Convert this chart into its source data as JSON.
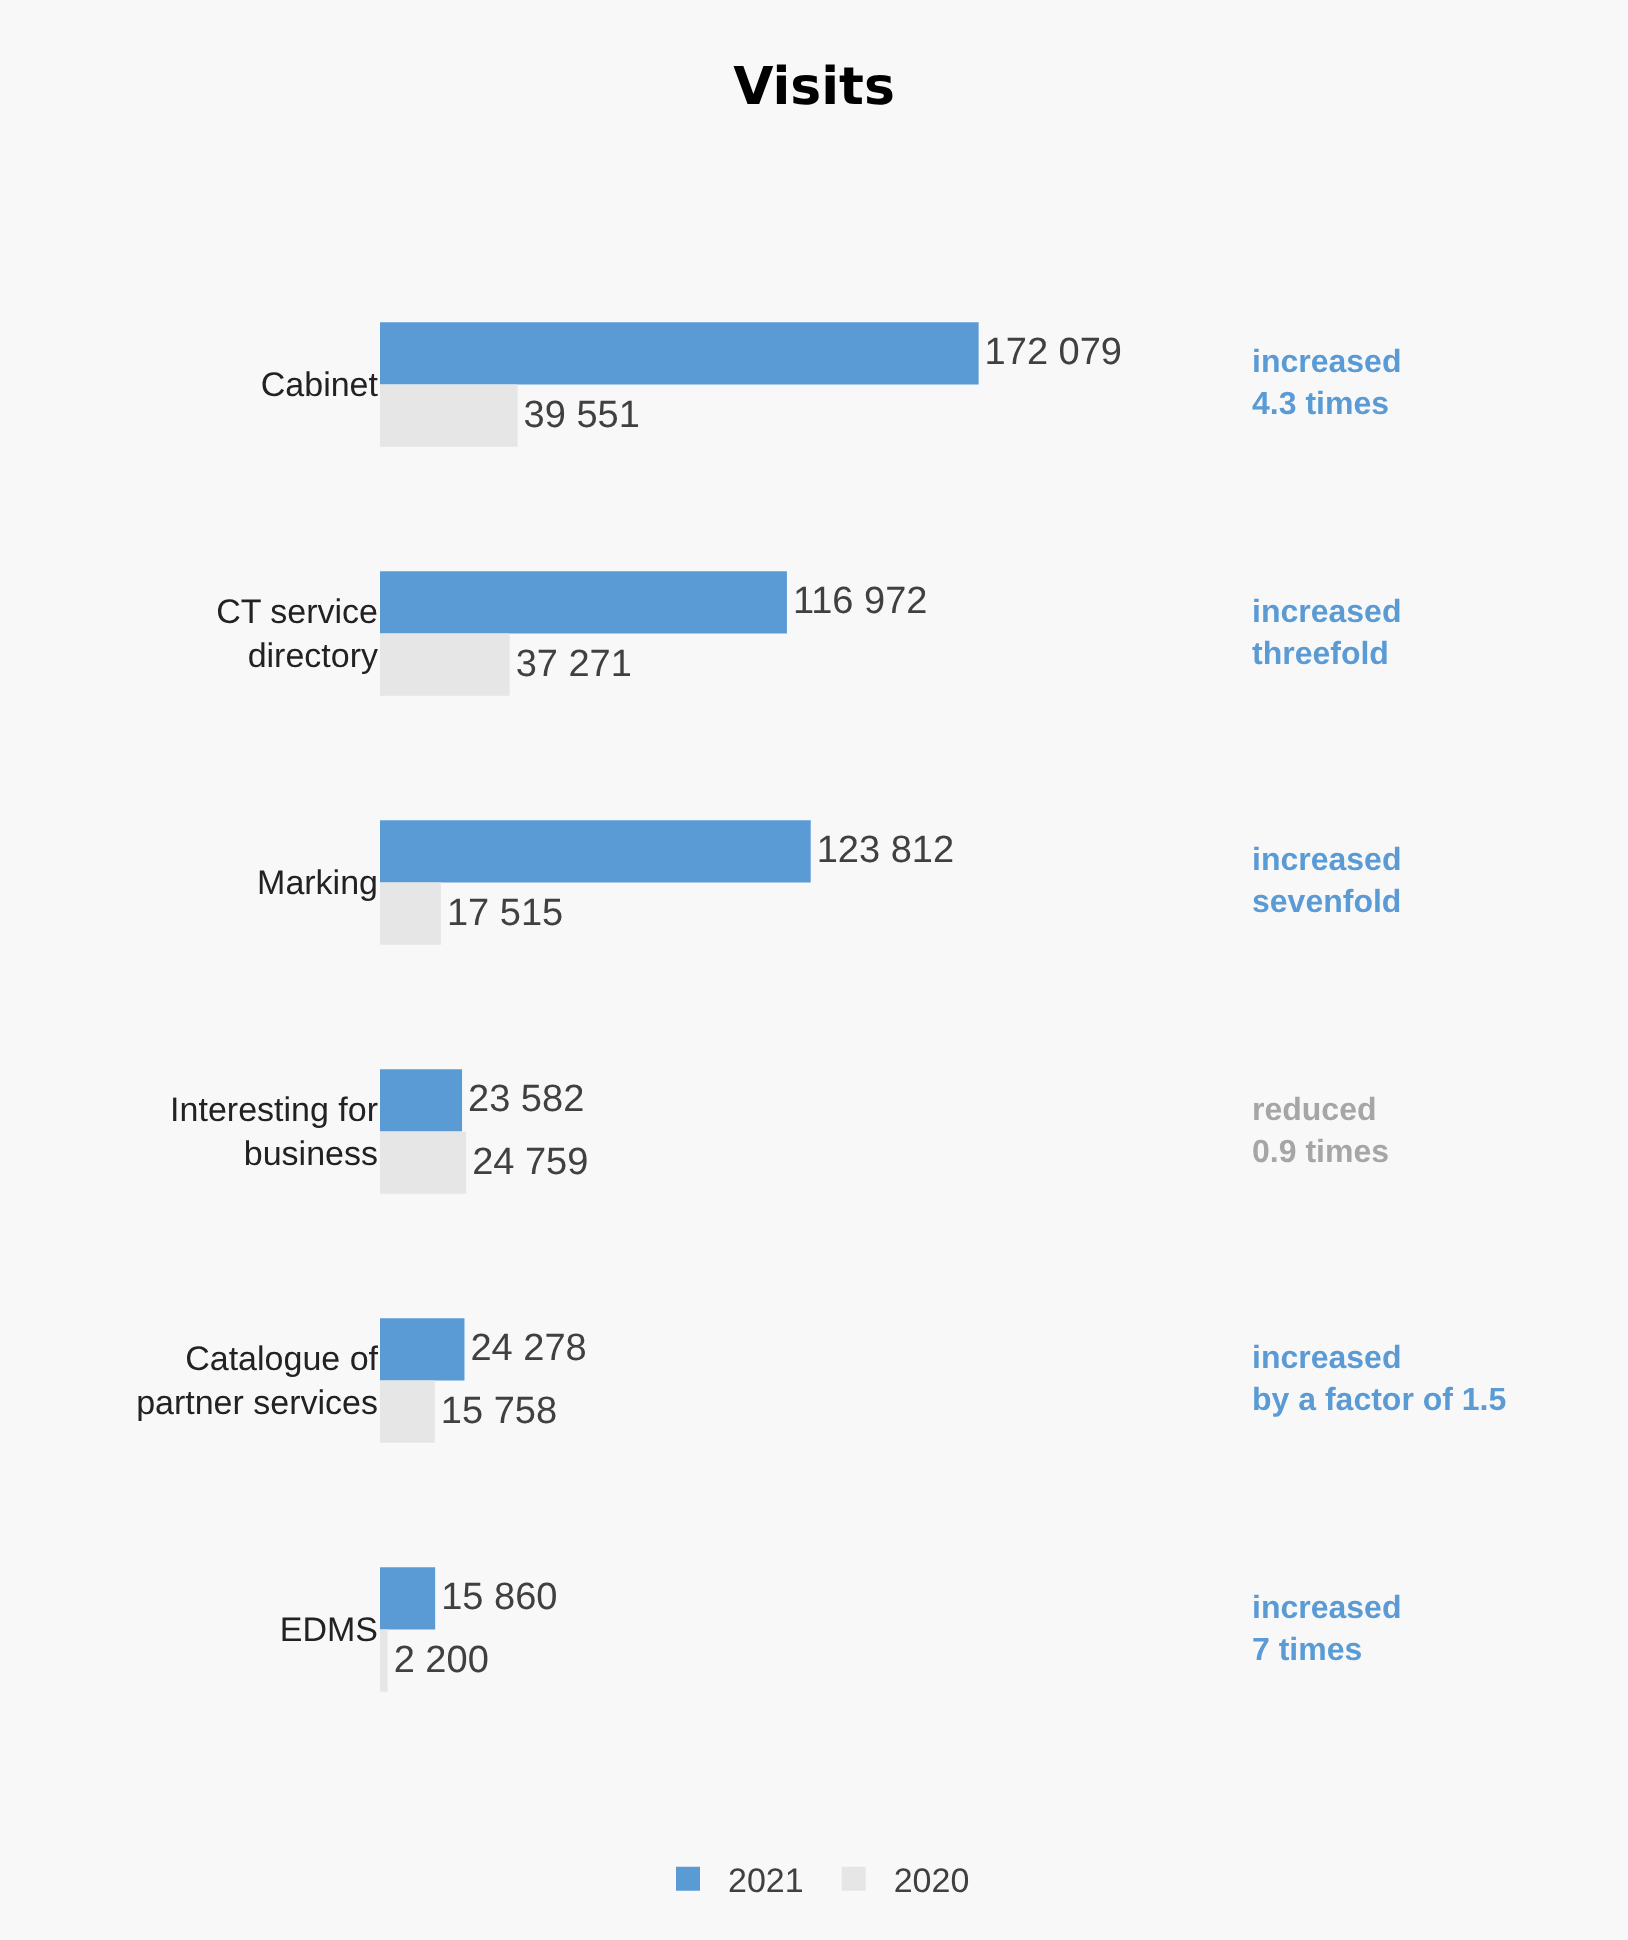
{
  "chart_data": {
    "type": "bar",
    "orientation": "horizontal",
    "title": "Visits",
    "categories": [
      "Cabinet",
      "CT service directory",
      "Marking",
      "Interesting for business",
      "Catalogue of partner services",
      "EDMS"
    ],
    "series": [
      {
        "name": "2021",
        "color": "#5b9bd5",
        "values": [
          172079,
          116972,
          123812,
          23582,
          24278,
          15860
        ],
        "value_labels": [
          "172 079",
          "116 972",
          "123 812",
          "23 582",
          "24 278",
          "15 860"
        ]
      },
      {
        "name": "2020",
        "color": "#e6e6e6",
        "values": [
          39551,
          37271,
          17515,
          24759,
          15758,
          2200
        ],
        "value_labels": [
          "39 551",
          "37 271",
          "17 515",
          "24 759",
          "15 758",
          "2 200"
        ]
      }
    ],
    "annotations": [
      "increased\n4.3 times",
      "increased\nthreefold",
      "increased\nsevenfold",
      "reduced\n0.9 times",
      "increased\nby a factor of 1.5",
      "increased\n7 times"
    ],
    "legend": "bottom"
  }
}
